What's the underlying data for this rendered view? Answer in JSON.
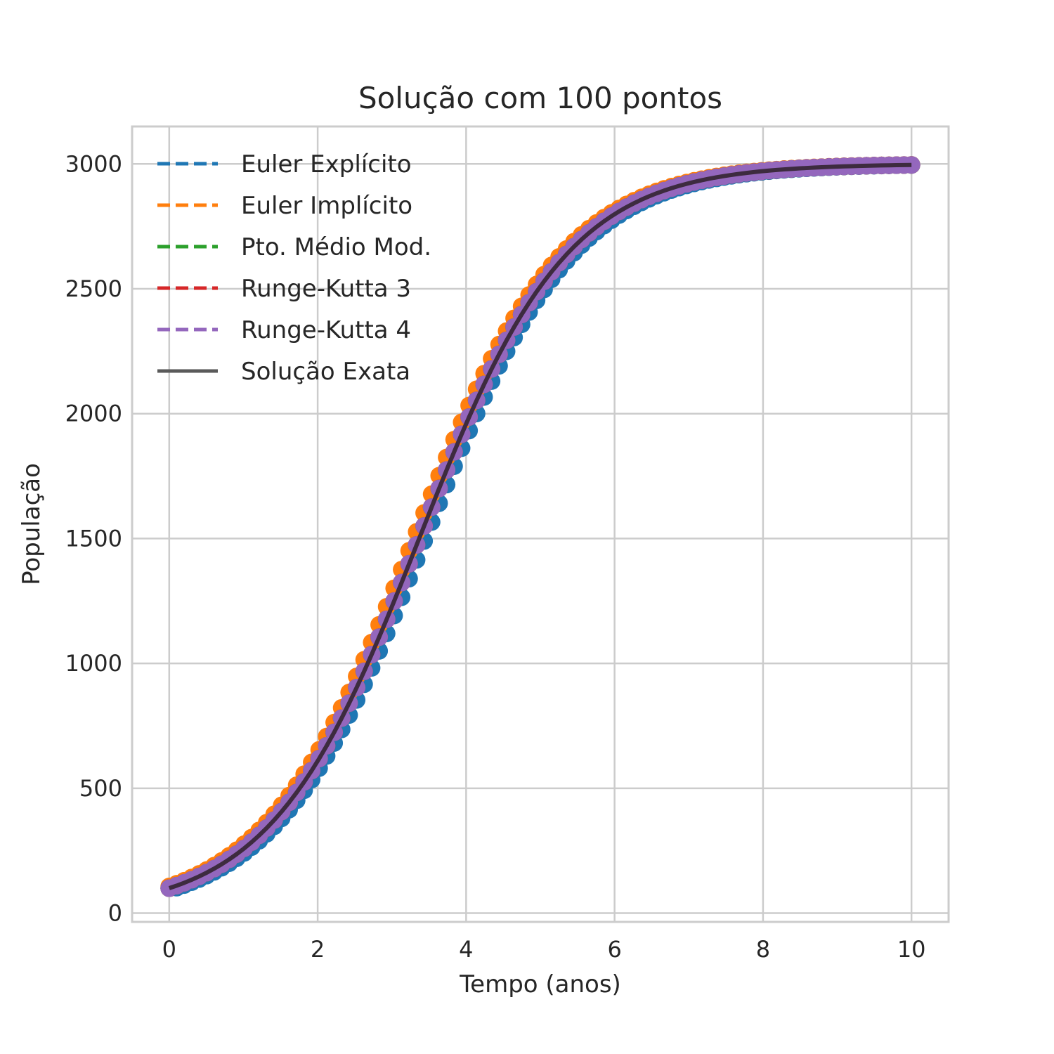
{
  "chart_data": {
    "type": "line",
    "title": "Solução com 100 pontos",
    "xlabel": "Tempo (anos)",
    "ylabel": "População",
    "xlim": [
      -0.5,
      10.5
    ],
    "ylim": [
      -35,
      3150
    ],
    "xticks": [
      0,
      2,
      4,
      6,
      8,
      10
    ],
    "xtick_labels": [
      "0",
      "2",
      "4",
      "6",
      "8",
      "10"
    ],
    "yticks": [
      0,
      500,
      1000,
      1500,
      2000,
      2500,
      3000
    ],
    "ytick_labels": [
      "0",
      "500",
      "1000",
      "1500",
      "2000",
      "2500",
      "3000"
    ],
    "grid": true,
    "legend_position": "top-left",
    "model": {
      "K": 3000,
      "P0": 100,
      "r": 1.0,
      "t_start": 0,
      "t_end": 10,
      "points": 100
    },
    "series": [
      {
        "name": "Euler Explícito",
        "color": "#1f77b4",
        "style": "dashed",
        "markers": true,
        "t_shift": 0.08
      },
      {
        "name": "Euler Implícito",
        "color": "#ff7f0e",
        "style": "dashed",
        "markers": true,
        "t_shift": -0.07
      },
      {
        "name": "Pto. Médio Mod.",
        "color": "#2ca02c",
        "style": "dashed",
        "markers": true,
        "t_shift": 0.0
      },
      {
        "name": "Runge-Kutta 3",
        "color": "#d62728",
        "style": "dashed",
        "markers": true,
        "t_shift": 0.0
      },
      {
        "name": "Runge-Kutta 4",
        "color": "#9467bd",
        "style": "dashed",
        "markers": true,
        "t_shift": 0.0
      },
      {
        "name": "Solução Exata",
        "color": "#3d2b3f",
        "legend_color": "#5a5a5a",
        "style": "solid",
        "markers": false,
        "t_shift": 0.0
      }
    ]
  }
}
